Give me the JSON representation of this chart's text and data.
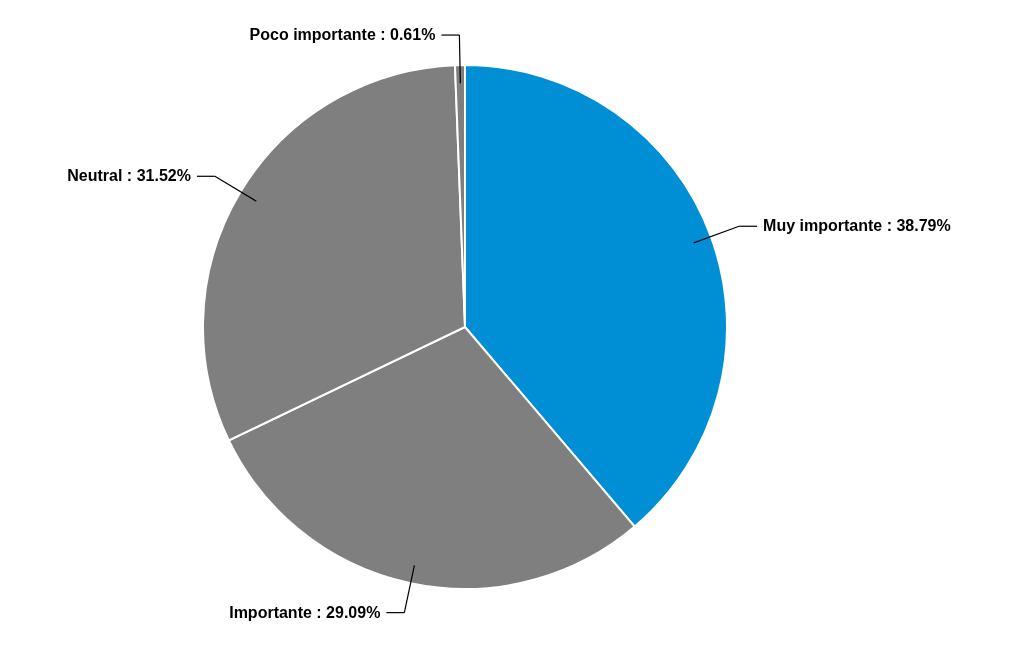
{
  "chart_data": {
    "type": "pie",
    "categories": [
      "Muy importante",
      "Importante",
      "Neutral",
      "Poco importante"
    ],
    "values": [
      38.79,
      29.09,
      31.52,
      0.61
    ],
    "value_labels": [
      "38.79%",
      "29.09%",
      "31.52%",
      "0.61%"
    ],
    "colors": [
      "#008fd5",
      "#7f7f7f",
      "#7f7f7f",
      "#7f7f7f"
    ]
  }
}
